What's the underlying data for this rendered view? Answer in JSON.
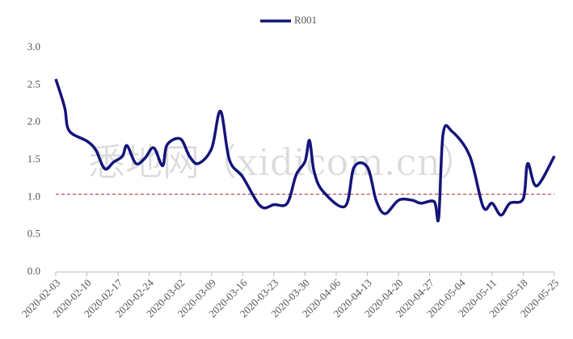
{
  "chart_data": {
    "type": "line",
    "watermark": "悉地网（xidicom.cn）",
    "series": [
      {
        "name": "R001",
        "color": "#14147a",
        "x": [
          "2020-02-03",
          "2020-02-05",
          "2020-02-06",
          "2020-02-10",
          "2020-02-12",
          "2020-02-14",
          "2020-02-16",
          "2020-02-18",
          "2020-02-19",
          "2020-02-21",
          "2020-02-23",
          "2020-02-25",
          "2020-02-27",
          "2020-02-28",
          "2020-03-02",
          "2020-03-04",
          "2020-03-06",
          "2020-03-09",
          "2020-03-11",
          "2020-03-13",
          "2020-03-16",
          "2020-03-20",
          "2020-03-23",
          "2020-03-26",
          "2020-03-28",
          "2020-03-30",
          "2020-03-31",
          "2020-04-01",
          "2020-04-03",
          "2020-04-08",
          "2020-04-10",
          "2020-04-13",
          "2020-04-15",
          "2020-04-17",
          "2020-04-20",
          "2020-04-23",
          "2020-04-25",
          "2020-04-28",
          "2020-04-29",
          "2020-04-30",
          "2020-05-02",
          "2020-05-06",
          "2020-05-09",
          "2020-05-11",
          "2020-05-13",
          "2020-05-15",
          "2020-05-18",
          "2020-05-19",
          "2020-05-21",
          "2020-05-25"
        ],
        "values": [
          2.58,
          2.2,
          1.89,
          1.75,
          1.63,
          1.38,
          1.47,
          1.55,
          1.69,
          1.45,
          1.52,
          1.66,
          1.42,
          1.7,
          1.78,
          1.55,
          1.45,
          1.65,
          2.15,
          1.5,
          1.27,
          0.88,
          0.9,
          0.92,
          1.3,
          1.48,
          1.76,
          1.35,
          1.08,
          0.88,
          1.4,
          1.4,
          0.95,
          0.78,
          0.96,
          0.96,
          0.92,
          0.94,
          0.72,
          1.85,
          1.88,
          1.55,
          0.87,
          0.92,
          0.76,
          0.92,
          0.98,
          1.45,
          1.15,
          1.55
        ]
      }
    ],
    "reference_line": {
      "value": 1.04,
      "color": "#a0282d"
    },
    "xlim": [
      "2020-02-03",
      "2020-05-25"
    ],
    "xticks": [
      "2020-02-03",
      "2020-02-10",
      "2020-02-17",
      "2020-02-24",
      "2020-03-02",
      "2020-03-09",
      "2020-03-16",
      "2020-03-23",
      "2020-03-30",
      "2020-04-06",
      "2020-04-13",
      "2020-04-20",
      "2020-04-27",
      "2020-05-04",
      "2020-05-11",
      "2020-05-18",
      "2020-05-25"
    ],
    "ylim": [
      0,
      3
    ],
    "yticks": [
      {
        "value": 0,
        "label": "0.0"
      },
      {
        "value": 0.5,
        "label": "0.5"
      },
      {
        "value": 1,
        "label": "1.0"
      },
      {
        "value": 1.5,
        "label": "1.5"
      },
      {
        "value": 2,
        "label": "2.0"
      },
      {
        "value": 2.5,
        "label": "2.5"
      },
      {
        "value": 3,
        "label": "3.0"
      }
    ],
    "legend": "top"
  }
}
